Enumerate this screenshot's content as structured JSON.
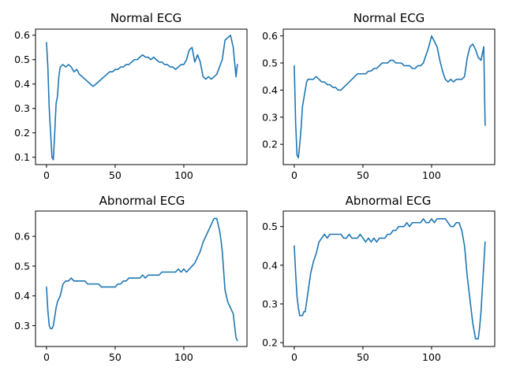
{
  "line_color": "#1f77b4",
  "chart_data": [
    {
      "type": "line",
      "title": "Normal ECG",
      "xlabel": "",
      "ylabel": "",
      "xlim": [
        -8,
        146
      ],
      "ylim": [
        0.07,
        0.625
      ],
      "xticks": [
        0,
        50,
        100
      ],
      "yticks": [
        0.1,
        0.2,
        0.3,
        0.4,
        0.5,
        0.6
      ],
      "xtick_labels": [
        "0",
        "50",
        "100"
      ],
      "ytick_labels": [
        "0.1",
        "0.2",
        "0.3",
        "0.4",
        "0.5",
        "0.6"
      ],
      "grid": false,
      "series": [
        {
          "x": [
            0,
            1,
            2,
            3,
            4,
            5,
            6,
            7,
            8,
            9,
            10,
            12,
            14,
            16,
            18,
            20,
            22,
            24,
            26,
            28,
            30,
            32,
            34,
            36,
            38,
            40,
            42,
            44,
            46,
            48,
            50,
            52,
            54,
            56,
            58,
            60,
            62,
            64,
            66,
            68,
            70,
            72,
            74,
            76,
            78,
            80,
            82,
            84,
            86,
            88,
            90,
            92,
            94,
            96,
            98,
            100,
            102,
            104,
            106,
            108,
            110,
            112,
            114,
            116,
            118,
            120,
            122,
            124,
            126,
            128,
            130,
            132,
            134,
            136,
            138,
            139
          ],
          "y": [
            0.57,
            0.47,
            0.3,
            0.2,
            0.1,
            0.09,
            0.2,
            0.32,
            0.35,
            0.43,
            0.47,
            0.48,
            0.47,
            0.48,
            0.47,
            0.45,
            0.46,
            0.44,
            0.43,
            0.42,
            0.41,
            0.4,
            0.39,
            0.4,
            0.41,
            0.42,
            0.43,
            0.44,
            0.45,
            0.45,
            0.46,
            0.46,
            0.47,
            0.47,
            0.48,
            0.48,
            0.49,
            0.5,
            0.5,
            0.51,
            0.52,
            0.51,
            0.51,
            0.5,
            0.51,
            0.5,
            0.49,
            0.49,
            0.48,
            0.48,
            0.47,
            0.47,
            0.46,
            0.47,
            0.48,
            0.48,
            0.5,
            0.54,
            0.55,
            0.49,
            0.52,
            0.49,
            0.43,
            0.42,
            0.43,
            0.42,
            0.43,
            0.44,
            0.47,
            0.5,
            0.58,
            0.59,
            0.6,
            0.55,
            0.43,
            0.48
          ]
        }
      ]
    },
    {
      "type": "line",
      "title": "Normal ECG",
      "xlabel": "",
      "ylabel": "",
      "xlim": [
        -8,
        146
      ],
      "ylim": [
        0.125,
        0.625
      ],
      "xticks": [
        0,
        50,
        100
      ],
      "yticks": [
        0.2,
        0.3,
        0.4,
        0.5,
        0.6
      ],
      "xtick_labels": [
        "0",
        "50",
        "100"
      ],
      "ytick_labels": [
        "0.2",
        "0.3",
        "0.4",
        "0.5",
        "0.6"
      ],
      "grid": false,
      "series": [
        {
          "x": [
            0,
            1,
            2,
            3,
            4,
            5,
            6,
            7,
            8,
            9,
            10,
            12,
            14,
            16,
            18,
            20,
            22,
            24,
            26,
            28,
            30,
            32,
            34,
            36,
            38,
            40,
            42,
            44,
            46,
            48,
            50,
            52,
            54,
            56,
            58,
            60,
            62,
            64,
            66,
            68,
            70,
            72,
            74,
            76,
            78,
            80,
            82,
            84,
            86,
            88,
            90,
            92,
            94,
            96,
            98,
            100,
            102,
            104,
            106,
            108,
            110,
            112,
            114,
            116,
            118,
            120,
            122,
            124,
            126,
            128,
            130,
            132,
            134,
            136,
            138,
            139
          ],
          "y": [
            0.49,
            0.28,
            0.16,
            0.15,
            0.2,
            0.26,
            0.34,
            0.37,
            0.4,
            0.43,
            0.44,
            0.44,
            0.44,
            0.45,
            0.44,
            0.43,
            0.43,
            0.42,
            0.42,
            0.41,
            0.41,
            0.4,
            0.4,
            0.41,
            0.42,
            0.43,
            0.44,
            0.45,
            0.46,
            0.46,
            0.46,
            0.46,
            0.47,
            0.47,
            0.48,
            0.48,
            0.49,
            0.5,
            0.5,
            0.5,
            0.51,
            0.51,
            0.5,
            0.5,
            0.5,
            0.49,
            0.49,
            0.49,
            0.48,
            0.48,
            0.49,
            0.49,
            0.5,
            0.53,
            0.56,
            0.6,
            0.58,
            0.56,
            0.51,
            0.47,
            0.44,
            0.43,
            0.44,
            0.43,
            0.44,
            0.44,
            0.44,
            0.45,
            0.52,
            0.56,
            0.57,
            0.55,
            0.52,
            0.51,
            0.56,
            0.27
          ]
        }
      ]
    },
    {
      "type": "line",
      "title": "Abnormal ECG",
      "xlabel": "",
      "ylabel": "",
      "xlim": [
        -8,
        146
      ],
      "ylim": [
        0.23,
        0.685
      ],
      "xticks": [
        0,
        50,
        100
      ],
      "yticks": [
        0.3,
        0.4,
        0.5,
        0.6
      ],
      "xtick_labels": [
        "0",
        "50",
        "100"
      ],
      "ytick_labels": [
        "0.3",
        "0.4",
        "0.5",
        "0.6"
      ],
      "grid": false,
      "series": [
        {
          "x": [
            0,
            1,
            2,
            3,
            4,
            5,
            6,
            7,
            8,
            10,
            12,
            14,
            16,
            18,
            20,
            22,
            24,
            26,
            28,
            30,
            32,
            34,
            36,
            38,
            40,
            42,
            44,
            46,
            48,
            50,
            52,
            54,
            56,
            58,
            60,
            62,
            64,
            66,
            68,
            70,
            72,
            74,
            76,
            78,
            80,
            82,
            84,
            86,
            88,
            90,
            92,
            94,
            96,
            98,
            100,
            102,
            104,
            106,
            108,
            110,
            112,
            114,
            116,
            118,
            120,
            122,
            124,
            126,
            127,
            128,
            130,
            132,
            134,
            136,
            138,
            139
          ],
          "y": [
            0.43,
            0.35,
            0.3,
            0.29,
            0.29,
            0.3,
            0.33,
            0.36,
            0.38,
            0.4,
            0.44,
            0.45,
            0.45,
            0.46,
            0.45,
            0.45,
            0.45,
            0.45,
            0.45,
            0.44,
            0.44,
            0.44,
            0.44,
            0.44,
            0.43,
            0.43,
            0.43,
            0.43,
            0.43,
            0.43,
            0.44,
            0.44,
            0.45,
            0.45,
            0.46,
            0.46,
            0.46,
            0.46,
            0.46,
            0.47,
            0.46,
            0.47,
            0.47,
            0.47,
            0.47,
            0.47,
            0.48,
            0.48,
            0.48,
            0.48,
            0.48,
            0.48,
            0.49,
            0.48,
            0.49,
            0.48,
            0.49,
            0.5,
            0.51,
            0.53,
            0.55,
            0.58,
            0.6,
            0.62,
            0.64,
            0.66,
            0.66,
            0.62,
            0.59,
            0.55,
            0.42,
            0.38,
            0.36,
            0.34,
            0.26,
            0.25
          ]
        }
      ]
    },
    {
      "type": "line",
      "title": "Abnormal ECG",
      "xlabel": "",
      "ylabel": "",
      "xlim": [
        -8,
        146
      ],
      "ylim": [
        0.19,
        0.54
      ],
      "xticks": [
        0,
        50,
        100
      ],
      "yticks": [
        0.2,
        0.3,
        0.4,
        0.5
      ],
      "xtick_labels": [
        "0",
        "50",
        "100"
      ],
      "ytick_labels": [
        "0.2",
        "0.3",
        "0.4",
        "0.5"
      ],
      "grid": false,
      "series": [
        {
          "x": [
            0,
            1,
            2,
            3,
            4,
            5,
            6,
            7,
            8,
            10,
            12,
            14,
            16,
            18,
            20,
            22,
            24,
            26,
            28,
            30,
            32,
            34,
            36,
            38,
            40,
            42,
            44,
            46,
            48,
            50,
            52,
            54,
            56,
            58,
            60,
            62,
            64,
            66,
            68,
            70,
            72,
            74,
            76,
            78,
            80,
            82,
            84,
            86,
            88,
            90,
            92,
            94,
            96,
            98,
            100,
            102,
            104,
            106,
            108,
            110,
            112,
            114,
            116,
            118,
            120,
            122,
            124,
            126,
            128,
            130,
            132,
            134,
            135,
            136,
            138,
            139
          ],
          "y": [
            0.45,
            0.38,
            0.32,
            0.29,
            0.27,
            0.27,
            0.27,
            0.28,
            0.28,
            0.33,
            0.38,
            0.41,
            0.43,
            0.46,
            0.47,
            0.48,
            0.47,
            0.48,
            0.48,
            0.48,
            0.48,
            0.48,
            0.47,
            0.47,
            0.48,
            0.47,
            0.47,
            0.47,
            0.48,
            0.47,
            0.46,
            0.47,
            0.46,
            0.47,
            0.46,
            0.47,
            0.47,
            0.47,
            0.48,
            0.48,
            0.49,
            0.49,
            0.5,
            0.5,
            0.5,
            0.51,
            0.5,
            0.51,
            0.51,
            0.51,
            0.51,
            0.52,
            0.51,
            0.51,
            0.52,
            0.51,
            0.52,
            0.52,
            0.52,
            0.52,
            0.51,
            0.5,
            0.5,
            0.51,
            0.51,
            0.49,
            0.45,
            0.37,
            0.31,
            0.25,
            0.21,
            0.21,
            0.24,
            0.28,
            0.4,
            0.46
          ]
        }
      ]
    }
  ]
}
